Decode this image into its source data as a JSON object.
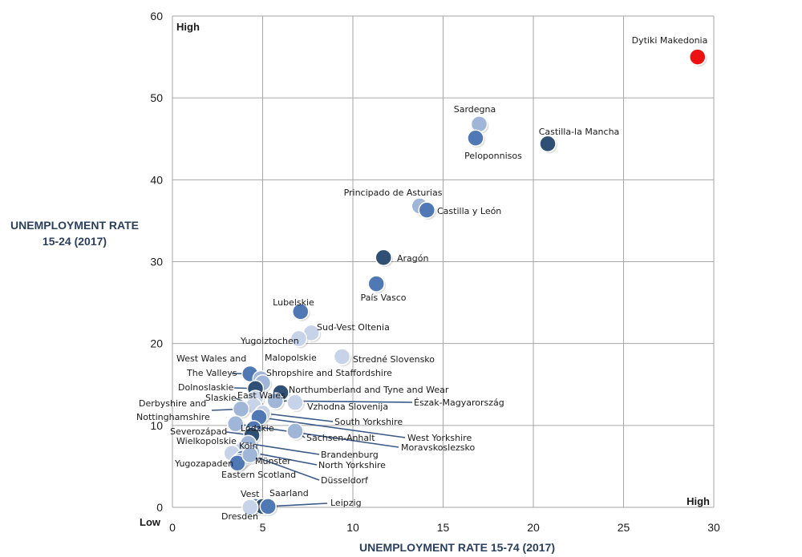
{
  "chart_data": {
    "type": "scatter",
    "xlabel": "UNEMPLOYMENT RATE 15-74 (2017)",
    "ylabel_lines": [
      "UNEMPLOYMENT RATE",
      "15-24 (2017)"
    ],
    "xlim": [
      0,
      30
    ],
    "ylim": [
      0,
      60
    ],
    "xticks": [
      0,
      5,
      10,
      15,
      20,
      25,
      30
    ],
    "yticks": [
      0,
      10,
      20,
      30,
      40,
      50,
      60
    ],
    "grid": true,
    "annotations": {
      "high_y": "High",
      "high_x": "High",
      "low": "Low"
    },
    "colors": {
      "dark": "#2f4f75",
      "mid": "#4f78b5",
      "light": "#9fb6d9",
      "pale": "#c6d3e8",
      "highlight": "#ee1111",
      "grid": "#a6a6a6",
      "leader": "#3a5a8a"
    },
    "points": [
      {
        "label": "Dytiki Makedonia",
        "x": 29.1,
        "y": 55.0,
        "color": "highlight"
      },
      {
        "label": "Sardegna",
        "x": 17.0,
        "y": 46.8,
        "color": "light"
      },
      {
        "label": "Peloponnisos",
        "x": 16.8,
        "y": 45.1,
        "color": "mid"
      },
      {
        "label": "Castilla-la Mancha",
        "x": 20.8,
        "y": 44.4,
        "color": "dark"
      },
      {
        "label": "Principado de Asturias",
        "x": 13.7,
        "y": 36.8,
        "color": "light"
      },
      {
        "label": "Castilla y León",
        "x": 14.1,
        "y": 36.3,
        "color": "mid"
      },
      {
        "label": "Aragón",
        "x": 11.7,
        "y": 30.5,
        "color": "dark"
      },
      {
        "label": "País Vasco",
        "x": 11.3,
        "y": 27.3,
        "color": "mid"
      },
      {
        "label": "Lubelskie",
        "x": 7.1,
        "y": 23.9,
        "color": "mid"
      },
      {
        "label": "Sud-Vest Oltenia",
        "x": 7.7,
        "y": 21.3,
        "color": "pale"
      },
      {
        "label": "Yugoiztochen",
        "x": 7.0,
        "y": 20.6,
        "color": "pale"
      },
      {
        "label": "Stredné Slovensko",
        "x": 9.4,
        "y": 18.4,
        "color": "pale"
      },
      {
        "label": "West Wales and The Valleys",
        "x": 4.3,
        "y": 16.3,
        "color": "mid"
      },
      {
        "label": "Malopolskie",
        "x": 4.9,
        "y": 15.7,
        "color": "light"
      },
      {
        "label": "Shropshire and Staffordshire",
        "x": 5.0,
        "y": 15.2,
        "color": "light"
      },
      {
        "label": "Dolnoslaskie",
        "x": 4.6,
        "y": 14.5,
        "color": "dark"
      },
      {
        "label": "Northumberland and Tyne and Wear",
        "x": 6.0,
        "y": 14.0,
        "color": "dark"
      },
      {
        "label": "East Wales",
        "x": 4.6,
        "y": 13.3,
        "color": "pale"
      },
      {
        "label": "Észak-Magyarország",
        "x": 5.7,
        "y": 13.0,
        "color": "light"
      },
      {
        "label": "Vzhodna Slovenija",
        "x": 6.8,
        "y": 12.8,
        "color": "pale"
      },
      {
        "label": "Slaskie",
        "x": 4.5,
        "y": 12.4,
        "color": "pale"
      },
      {
        "label": "Derbyshire and Nottinghamshire",
        "x": 3.8,
        "y": 12.0,
        "color": "light"
      },
      {
        "label": "South Yorkshire",
        "x": 5.0,
        "y": 11.5,
        "color": "pale"
      },
      {
        "label": "West Yorkshire",
        "x": 4.8,
        "y": 11.0,
        "color": "mid"
      },
      {
        "label": "Moravskoslezsko",
        "x": 3.5,
        "y": 10.2,
        "color": "light"
      },
      {
        "label": "Lódzkie",
        "x": 4.5,
        "y": 9.6,
        "color": "mid"
      },
      {
        "label": "Sachsen-Anhalt",
        "x": 6.8,
        "y": 9.3,
        "color": "light"
      },
      {
        "label": "Severozápad",
        "x": 4.4,
        "y": 8.8,
        "color": "dark"
      },
      {
        "label": "Brandenburg",
        "x": 4.2,
        "y": 7.8,
        "color": "light"
      },
      {
        "label": "Köln",
        "x": 3.8,
        "y": 6.9,
        "color": "pale"
      },
      {
        "label": "Wielkopolskie",
        "x": 3.3,
        "y": 6.6,
        "color": "pale"
      },
      {
        "label": "North Yorkshire",
        "x": 4.4,
        "y": 6.7,
        "color": "light"
      },
      {
        "label": "Yugozapaden",
        "x": 3.9,
        "y": 6.0,
        "color": "mid"
      },
      {
        "label": "Münster",
        "x": 3.7,
        "y": 5.6,
        "color": "mid"
      },
      {
        "label": "Eastern Scotland",
        "x": 3.6,
        "y": 5.4,
        "color": "mid"
      },
      {
        "label": "Düsseldorf",
        "x": 4.3,
        "y": 6.4,
        "color": "light"
      },
      {
        "label": "Vest",
        "x": 4.6,
        "y": 0.1,
        "color": "mid"
      },
      {
        "label": "Saarland",
        "x": 5.0,
        "y": 0.1,
        "color": "dark"
      },
      {
        "label": "Leipzig",
        "x": 5.3,
        "y": 0.1,
        "color": "mid"
      },
      {
        "label": "Dresden",
        "x": 4.3,
        "y": 0.0,
        "color": "pale"
      }
    ]
  }
}
